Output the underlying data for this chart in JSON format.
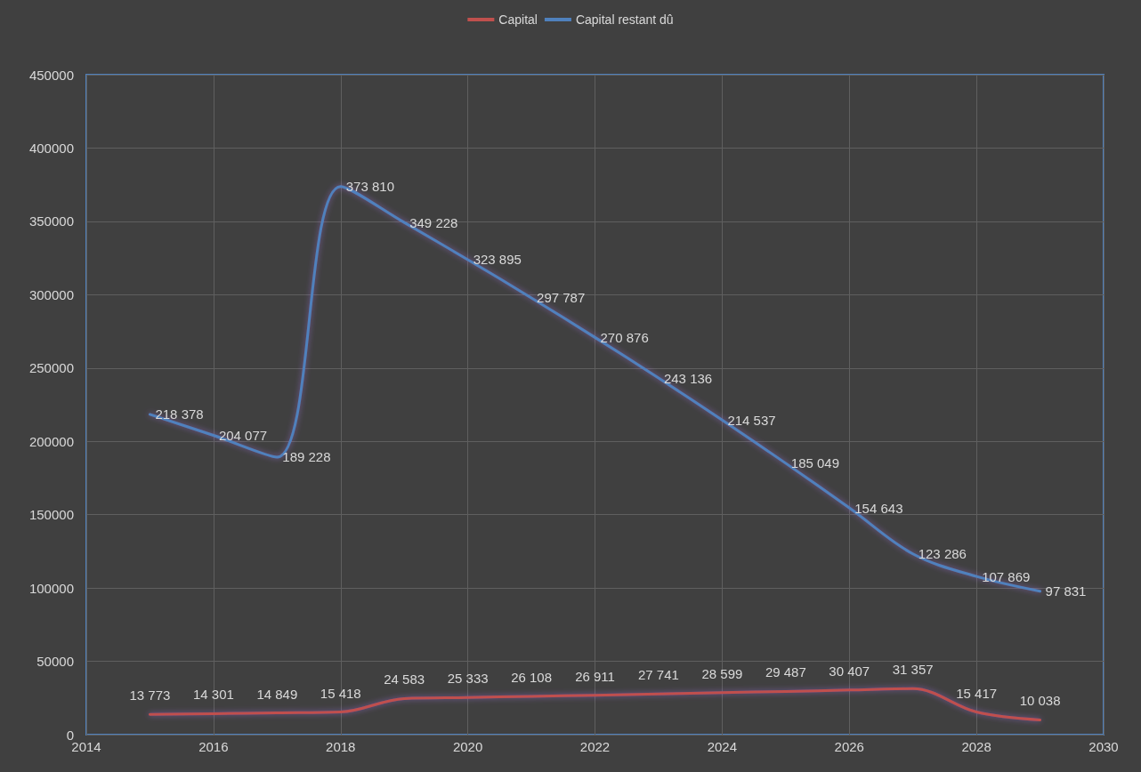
{
  "chart_data": {
    "type": "line",
    "x": [
      2015,
      2016,
      2017,
      2018,
      2019,
      2020,
      2021,
      2022,
      2023,
      2024,
      2025,
      2026,
      2027,
      2028,
      2029
    ],
    "series": [
      {
        "name": "Capital",
        "color": "#c0504d",
        "values": [
          13773,
          14301,
          14849,
          15418,
          24583,
          25333,
          26108,
          26911,
          27741,
          28599,
          29487,
          30407,
          31357,
          15417,
          10038
        ],
        "value_labels": [
          "13 773",
          "14 301",
          "14 849",
          "15 418",
          "24 583",
          "25 333",
          "26 108",
          "26 911",
          "27 741",
          "28 599",
          "29 487",
          "30 407",
          "31 357",
          "15 417",
          "10 038"
        ]
      },
      {
        "name": "Capital restant dû",
        "color": "#4f81bd",
        "values": [
          218378,
          204077,
          189228,
          373810,
          349228,
          323895,
          297787,
          270876,
          243136,
          214537,
          185049,
          154643,
          123286,
          107869,
          97831
        ],
        "value_labels": [
          "218 378",
          "204 077",
          "189 228",
          "373 810",
          "349 228",
          "323 895",
          "297 787",
          "270 876",
          "243 136",
          "214 537",
          "185 049",
          "154 643",
          "123 286",
          "107 869",
          "97 831"
        ]
      }
    ],
    "xlim": [
      2014,
      2030
    ],
    "xticks": [
      2014,
      2016,
      2018,
      2020,
      2022,
      2024,
      2026,
      2028,
      2030
    ],
    "ylim": [
      0,
      450000
    ],
    "yticks": [
      0,
      50000,
      100000,
      150000,
      200000,
      250000,
      300000,
      350000,
      400000,
      450000
    ],
    "grid": true,
    "legend": "top",
    "marker": "none",
    "line_style": "solid"
  }
}
